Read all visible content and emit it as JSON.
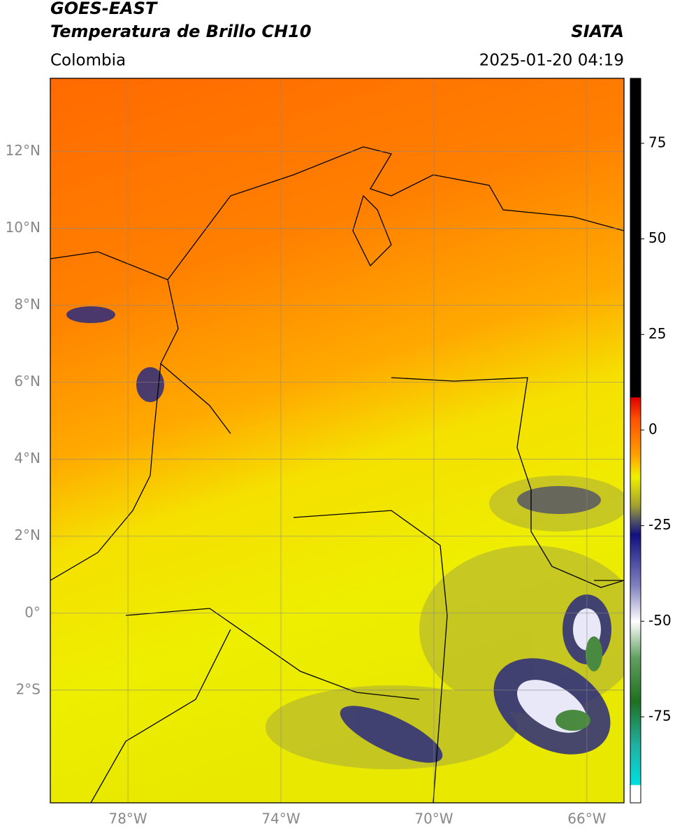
{
  "header": {
    "title": "GOES-EAST",
    "subtitle": "Temperatura de Brillo CH10",
    "source": "SIATA",
    "region": "Colombia",
    "timestamp": "2025-01-20 04:19"
  },
  "map": {
    "latlim": [
      -4.93,
      13.9
    ],
    "lonlim": [
      -80.03,
      -65.03
    ],
    "lat_ticks": [
      {
        "value": 12,
        "label": "12°N"
      },
      {
        "value": 10,
        "label": "10°N"
      },
      {
        "value": 8,
        "label": "8°N"
      },
      {
        "value": 6,
        "label": "6°N"
      },
      {
        "value": 4,
        "label": "4°N"
      },
      {
        "value": 2,
        "label": "2°N"
      },
      {
        "value": 0,
        "label": "0°"
      },
      {
        "value": -2,
        "label": "2°S"
      }
    ],
    "lon_ticks": [
      {
        "value": -78,
        "label": "78°W"
      },
      {
        "value": -74,
        "label": "74°W"
      },
      {
        "value": -70,
        "label": "70°W"
      },
      {
        "value": -66,
        "label": "66°W"
      }
    ]
  },
  "colorbar": {
    "lim": [
      -97.5,
      92
    ],
    "ticks": [
      75,
      50,
      25,
      0,
      -25,
      -50,
      -75
    ]
  }
}
